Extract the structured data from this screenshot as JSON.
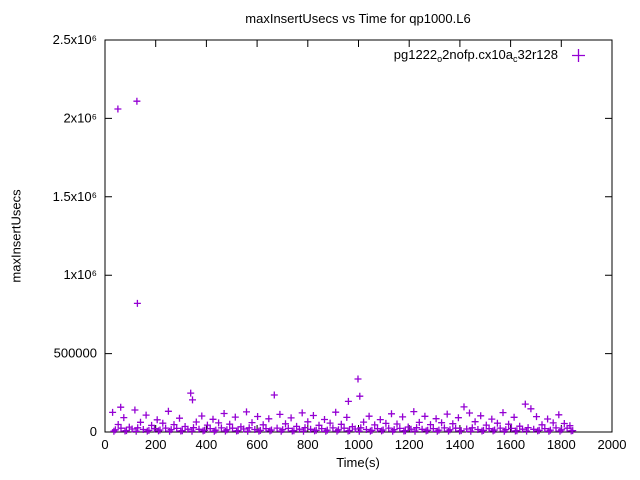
{
  "chart_data": {
    "type": "scatter",
    "title": "maxInsertUsecs vs Time for qp1000.L6",
    "xlabel": "Time(s)",
    "ylabel": "maxInsertUsecs",
    "xlim": [
      0,
      2000
    ],
    "ylim": [
      0,
      2500000
    ],
    "grid": false,
    "axis_color": "#000000",
    "marker": {
      "shape": "plus",
      "color": "#9400d3",
      "size": 7
    },
    "x_ticks": [
      {
        "value": 0,
        "label": "0"
      },
      {
        "value": 200,
        "label": "200"
      },
      {
        "value": 400,
        "label": "400"
      },
      {
        "value": 600,
        "label": "600"
      },
      {
        "value": 800,
        "label": "800"
      },
      {
        "value": 1000,
        "label": "1000"
      },
      {
        "value": 1200,
        "label": "1200"
      },
      {
        "value": 1400,
        "label": "1400"
      },
      {
        "value": 1600,
        "label": "1600"
      },
      {
        "value": 1800,
        "label": "1800"
      },
      {
        "value": 2000,
        "label": "2000"
      }
    ],
    "y_ticks": [
      {
        "value": 0,
        "label": "0"
      },
      {
        "value": 500000,
        "label": "500000"
      },
      {
        "value": 1000000,
        "label": "1x10⁶"
      },
      {
        "value": 1500000,
        "label": "1.5x10⁶"
      },
      {
        "value": 2000000,
        "label": "2x10⁶"
      },
      {
        "value": 2500000,
        "label": "2.5x10⁶"
      }
    ],
    "legend": {
      "position": "top-right",
      "segments": [
        {
          "text": "pg1222",
          "sub": false
        },
        {
          "text": "o",
          "sub": true
        },
        {
          "text": "2nofp.cx10a",
          "sub": false
        },
        {
          "text": "c",
          "sub": true
        },
        {
          "text": "32r128",
          "sub": false
        }
      ]
    },
    "series": [
      {
        "name": "pg1222_o2nofp.cx10a_c32r128",
        "points": [
          [
            51,
            2060000
          ],
          [
            126,
            2110000
          ],
          [
            128,
            820000
          ],
          [
            998,
            338000
          ],
          [
            1005,
            228000
          ],
          [
            960,
            195000
          ],
          [
            345,
            205000
          ],
          [
            62,
            158000
          ],
          [
            30,
            125000
          ],
          [
            52,
            48000
          ],
          [
            74,
            92000
          ],
          [
            96,
            31000
          ],
          [
            118,
            140000
          ],
          [
            140,
            62000
          ],
          [
            162,
            108000
          ],
          [
            184,
            42000
          ],
          [
            206,
            78000
          ],
          [
            228,
            56000
          ],
          [
            250,
            132000
          ],
          [
            272,
            47000
          ],
          [
            294,
            88000
          ],
          [
            316,
            35000
          ],
          [
            338,
            248000
          ],
          [
            360,
            64000
          ],
          [
            382,
            102000
          ],
          [
            404,
            44000
          ],
          [
            426,
            81000
          ],
          [
            448,
            58000
          ],
          [
            470,
            118000
          ],
          [
            492,
            50000
          ],
          [
            514,
            95000
          ],
          [
            536,
            33000
          ],
          [
            558,
            128000
          ],
          [
            580,
            60000
          ],
          [
            602,
            99000
          ],
          [
            624,
            46000
          ],
          [
            646,
            84000
          ],
          [
            668,
            236000
          ],
          [
            690,
            112000
          ],
          [
            712,
            52000
          ],
          [
            734,
            90000
          ],
          [
            756,
            36000
          ],
          [
            778,
            122000
          ],
          [
            800,
            65000
          ],
          [
            822,
            105000
          ],
          [
            844,
            43000
          ],
          [
            866,
            80000
          ],
          [
            888,
            57000
          ],
          [
            910,
            126000
          ],
          [
            932,
            49000
          ],
          [
            954,
            93000
          ],
          [
            976,
            34000
          ],
          [
            1020,
            63000
          ],
          [
            1042,
            101000
          ],
          [
            1064,
            45000
          ],
          [
            1086,
            79000
          ],
          [
            1108,
            55000
          ],
          [
            1130,
            116000
          ],
          [
            1152,
            51000
          ],
          [
            1174,
            96000
          ],
          [
            1196,
            32000
          ],
          [
            1218,
            130000
          ],
          [
            1240,
            61000
          ],
          [
            1262,
            100000
          ],
          [
            1284,
            47000
          ],
          [
            1306,
            85000
          ],
          [
            1328,
            59000
          ],
          [
            1350,
            114000
          ],
          [
            1372,
            53000
          ],
          [
            1394,
            91000
          ],
          [
            1416,
            160000
          ],
          [
            1438,
            121000
          ],
          [
            1460,
            66000
          ],
          [
            1482,
            103000
          ],
          [
            1504,
            44000
          ],
          [
            1526,
            82000
          ],
          [
            1548,
            56000
          ],
          [
            1570,
            124000
          ],
          [
            1592,
            50000
          ],
          [
            1614,
            94000
          ],
          [
            1636,
            37000
          ],
          [
            1658,
            178000
          ],
          [
            1680,
            148000
          ],
          [
            1702,
            98000
          ],
          [
            1724,
            46000
          ],
          [
            1746,
            83000
          ],
          [
            1768,
            58000
          ],
          [
            1790,
            110000
          ],
          [
            1812,
            54000
          ],
          [
            1834,
            40000
          ],
          [
            41,
            14000
          ],
          [
            63,
            24000
          ],
          [
            85,
            9000
          ],
          [
            107,
            19000
          ],
          [
            129,
            27000
          ],
          [
            151,
            16000
          ],
          [
            173,
            10000
          ],
          [
            195,
            21000
          ],
          [
            217,
            13000
          ],
          [
            239,
            25000
          ],
          [
            261,
            15000
          ],
          [
            283,
            23000
          ],
          [
            305,
            8000
          ],
          [
            327,
            18000
          ],
          [
            349,
            28000
          ],
          [
            371,
            17000
          ],
          [
            393,
            11000
          ],
          [
            415,
            22000
          ],
          [
            437,
            12000
          ],
          [
            459,
            26000
          ],
          [
            481,
            14000
          ],
          [
            503,
            24000
          ],
          [
            525,
            9000
          ],
          [
            547,
            19000
          ],
          [
            569,
            27000
          ],
          [
            591,
            16000
          ],
          [
            613,
            10000
          ],
          [
            635,
            21000
          ],
          [
            657,
            13000
          ],
          [
            679,
            25000
          ],
          [
            701,
            15000
          ],
          [
            723,
            23000
          ],
          [
            745,
            8000
          ],
          [
            767,
            18000
          ],
          [
            789,
            28000
          ],
          [
            811,
            17000
          ],
          [
            833,
            11000
          ],
          [
            855,
            22000
          ],
          [
            877,
            12000
          ],
          [
            899,
            26000
          ],
          [
            921,
            14000
          ],
          [
            943,
            24000
          ],
          [
            965,
            9000
          ],
          [
            987,
            19000
          ],
          [
            1009,
            27000
          ],
          [
            1031,
            16000
          ],
          [
            1053,
            10000
          ],
          [
            1075,
            21000
          ],
          [
            1097,
            13000
          ],
          [
            1119,
            25000
          ],
          [
            1141,
            15000
          ],
          [
            1163,
            23000
          ],
          [
            1185,
            8000
          ],
          [
            1207,
            18000
          ],
          [
            1229,
            28000
          ],
          [
            1251,
            17000
          ],
          [
            1273,
            11000
          ],
          [
            1295,
            22000
          ],
          [
            1317,
            12000
          ],
          [
            1339,
            26000
          ],
          [
            1361,
            14000
          ],
          [
            1383,
            24000
          ],
          [
            1405,
            9000
          ],
          [
            1427,
            19000
          ],
          [
            1449,
            27000
          ],
          [
            1471,
            16000
          ],
          [
            1493,
            10000
          ],
          [
            1515,
            21000
          ],
          [
            1537,
            13000
          ],
          [
            1559,
            25000
          ],
          [
            1581,
            15000
          ],
          [
            1603,
            23000
          ],
          [
            1625,
            8000
          ],
          [
            1647,
            18000
          ],
          [
            1669,
            28000
          ],
          [
            1691,
            17000
          ],
          [
            1713,
            11000
          ],
          [
            1735,
            22000
          ],
          [
            1757,
            12000
          ],
          [
            1779,
            26000
          ],
          [
            1801,
            14000
          ],
          [
            1823,
            24000
          ],
          [
            1845,
            9000
          ],
          [
            35,
            5000
          ],
          [
            79,
            6500
          ],
          [
            123,
            4200
          ],
          [
            167,
            5800
          ],
          [
            211,
            7000
          ],
          [
            255,
            4800
          ],
          [
            299,
            6200
          ],
          [
            343,
            5200
          ],
          [
            387,
            6800
          ],
          [
            431,
            4500
          ],
          [
            475,
            5600
          ],
          [
            519,
            6400
          ],
          [
            563,
            4300
          ],
          [
            607,
            5900
          ],
          [
            651,
            7100
          ],
          [
            695,
            4900
          ],
          [
            739,
            6300
          ],
          [
            783,
            5300
          ],
          [
            827,
            6900
          ],
          [
            871,
            4600
          ],
          [
            915,
            5700
          ],
          [
            959,
            6500
          ],
          [
            1003,
            4400
          ],
          [
            1047,
            6000
          ],
          [
            1091,
            7200
          ],
          [
            1135,
            5000
          ],
          [
            1179,
            6400
          ],
          [
            1223,
            5400
          ],
          [
            1267,
            7000
          ],
          [
            1311,
            4700
          ],
          [
            1355,
            5800
          ],
          [
            1399,
            6600
          ],
          [
            1443,
            4500
          ],
          [
            1487,
            6100
          ],
          [
            1531,
            7300
          ],
          [
            1575,
            5100
          ],
          [
            1619,
            6500
          ],
          [
            1663,
            5500
          ],
          [
            1707,
            7100
          ],
          [
            1751,
            4800
          ],
          [
            1795,
            5900
          ],
          [
            1839,
            6700
          ]
        ]
      }
    ]
  }
}
